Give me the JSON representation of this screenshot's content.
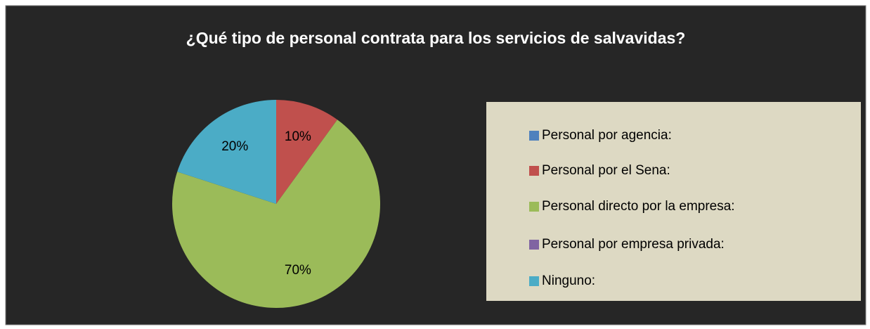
{
  "chart_data": {
    "type": "pie",
    "title": "¿Qué tipo de personal contrata para los servicios de salvavidas?",
    "categories": [
      "Personal por agencia:",
      "Personal por el Sena:",
      "Personal directo por la empresa:",
      "Personal por empresa privada:",
      "Ninguno:"
    ],
    "values": [
      0,
      10,
      70,
      0,
      20
    ],
    "value_labels": [
      null,
      "10%",
      "70%",
      null,
      "20%"
    ],
    "colors": [
      "#4f81bd",
      "#c0504d",
      "#9bbb59",
      "#8064a2",
      "#4bacc6"
    ],
    "legend": "right"
  }
}
